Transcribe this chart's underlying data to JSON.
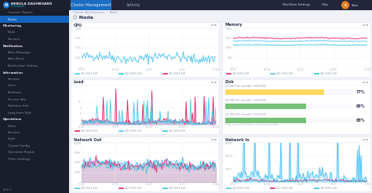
{
  "bg_dark": "#1c1f2e",
  "bg_sidebar": "#1a1d2b",
  "bg_topbar": "#23263a",
  "bg_main": "#f0f2f8",
  "bg_panel": "#ffffff",
  "bg_chart": "#f8f9fc",
  "text_title": "#1a1d2b",
  "text_gray": "#8892a4",
  "text_dark": "#2c3350",
  "text_white": "#e8eaf0",
  "text_lightgray": "#aab0c0",
  "accent_blue": "#1976d2",
  "accent_cyan": "#00bcd4",
  "accent_pink": "#e91e63",
  "accent_green": "#4caf50",
  "accent_yellow": "#ffc107",
  "accent_teal": "#26c6da",
  "sidebar_active_bg": "#1565c0",
  "grid_color": "#e8ecf4",
  "cpu_color": "#4fc3f7",
  "memory_colors": [
    "#e91e63",
    "#4fc3f7",
    "#26c6da"
  ],
  "load_colors": [
    "#e91e63",
    "#4fc3f7",
    "#26c6da"
  ],
  "disk_bar_colors": [
    "#ffd54f",
    "#66bb6a",
    "#66bb6a"
  ],
  "network_out_colors": [
    "#4fc3f7",
    "#e91e63",
    "#26c6da"
  ],
  "network_in_color": "#4fc3f7",
  "disk_values": [
    77,
    63,
    63
  ],
  "disk_pct_labels": [
    "77%",
    "63%",
    "63%"
  ],
  "disk_labels": [
    "192.168.8.129 - /dev/sda5 - CLOUD NODE",
    "192.168.8.130 - /dev/sda5 - CLOUD NODE",
    "192.168.8.128 - /dev/sda5 - CLOUD NODE"
  ],
  "sidebar_menu": [
    [
      "Current / Report",
      false,
      false
    ],
    [
      "Nodes",
      false,
      true
    ],
    [
      "Monitoring",
      true,
      false
    ],
    [
      "Node",
      false,
      false
    ],
    [
      "Services",
      false,
      false
    ],
    [
      "Notification",
      true,
      false
    ],
    [
      "Alert Messages",
      false,
      false
    ],
    [
      "Alert Rules",
      false,
      false
    ],
    [
      "Notification Setting",
      false,
      false
    ],
    [
      "Information",
      true,
      false
    ],
    [
      "Services",
      false,
      false
    ],
    [
      "Users",
      false,
      false
    ],
    [
      "Partitions",
      false,
      false
    ],
    [
      "Service Info",
      false,
      false
    ],
    [
      "Statistics Info",
      false,
      false
    ],
    [
      "Long-term Task",
      false,
      false
    ],
    [
      "Operations",
      true,
      false
    ],
    [
      "Clone",
      false,
      false
    ],
    [
      "Services",
      false,
      false
    ],
    [
      "Scale",
      false,
      false
    ],
    [
      "Cluster Config",
      false,
      false
    ],
    [
      "Operation Report",
      false,
      false
    ],
    [
      "Other Settings",
      false,
      false
    ]
  ],
  "logo_text": "NEBULA DASHBOARD",
  "logo_sub": "Enterprise",
  "topbar_tabs": [
    "Cluster Management",
    "Activity"
  ],
  "breadcrumb": "Cluster And Services  /  Node",
  "page_title": "Node",
  "version": "v1.6.1",
  "time_labels": [
    "11:40",
    "12:00",
    "12:20",
    "12:40",
    "13:00"
  ],
  "legend_ips": [
    "192.168.8.129",
    "192.168.8.130",
    "192.168.8.128"
  ],
  "panel_separator_color": "#e0e4f0",
  "topbar_right_color": "#d0d4e0",
  "node_icon_color": "#4fc3f7"
}
